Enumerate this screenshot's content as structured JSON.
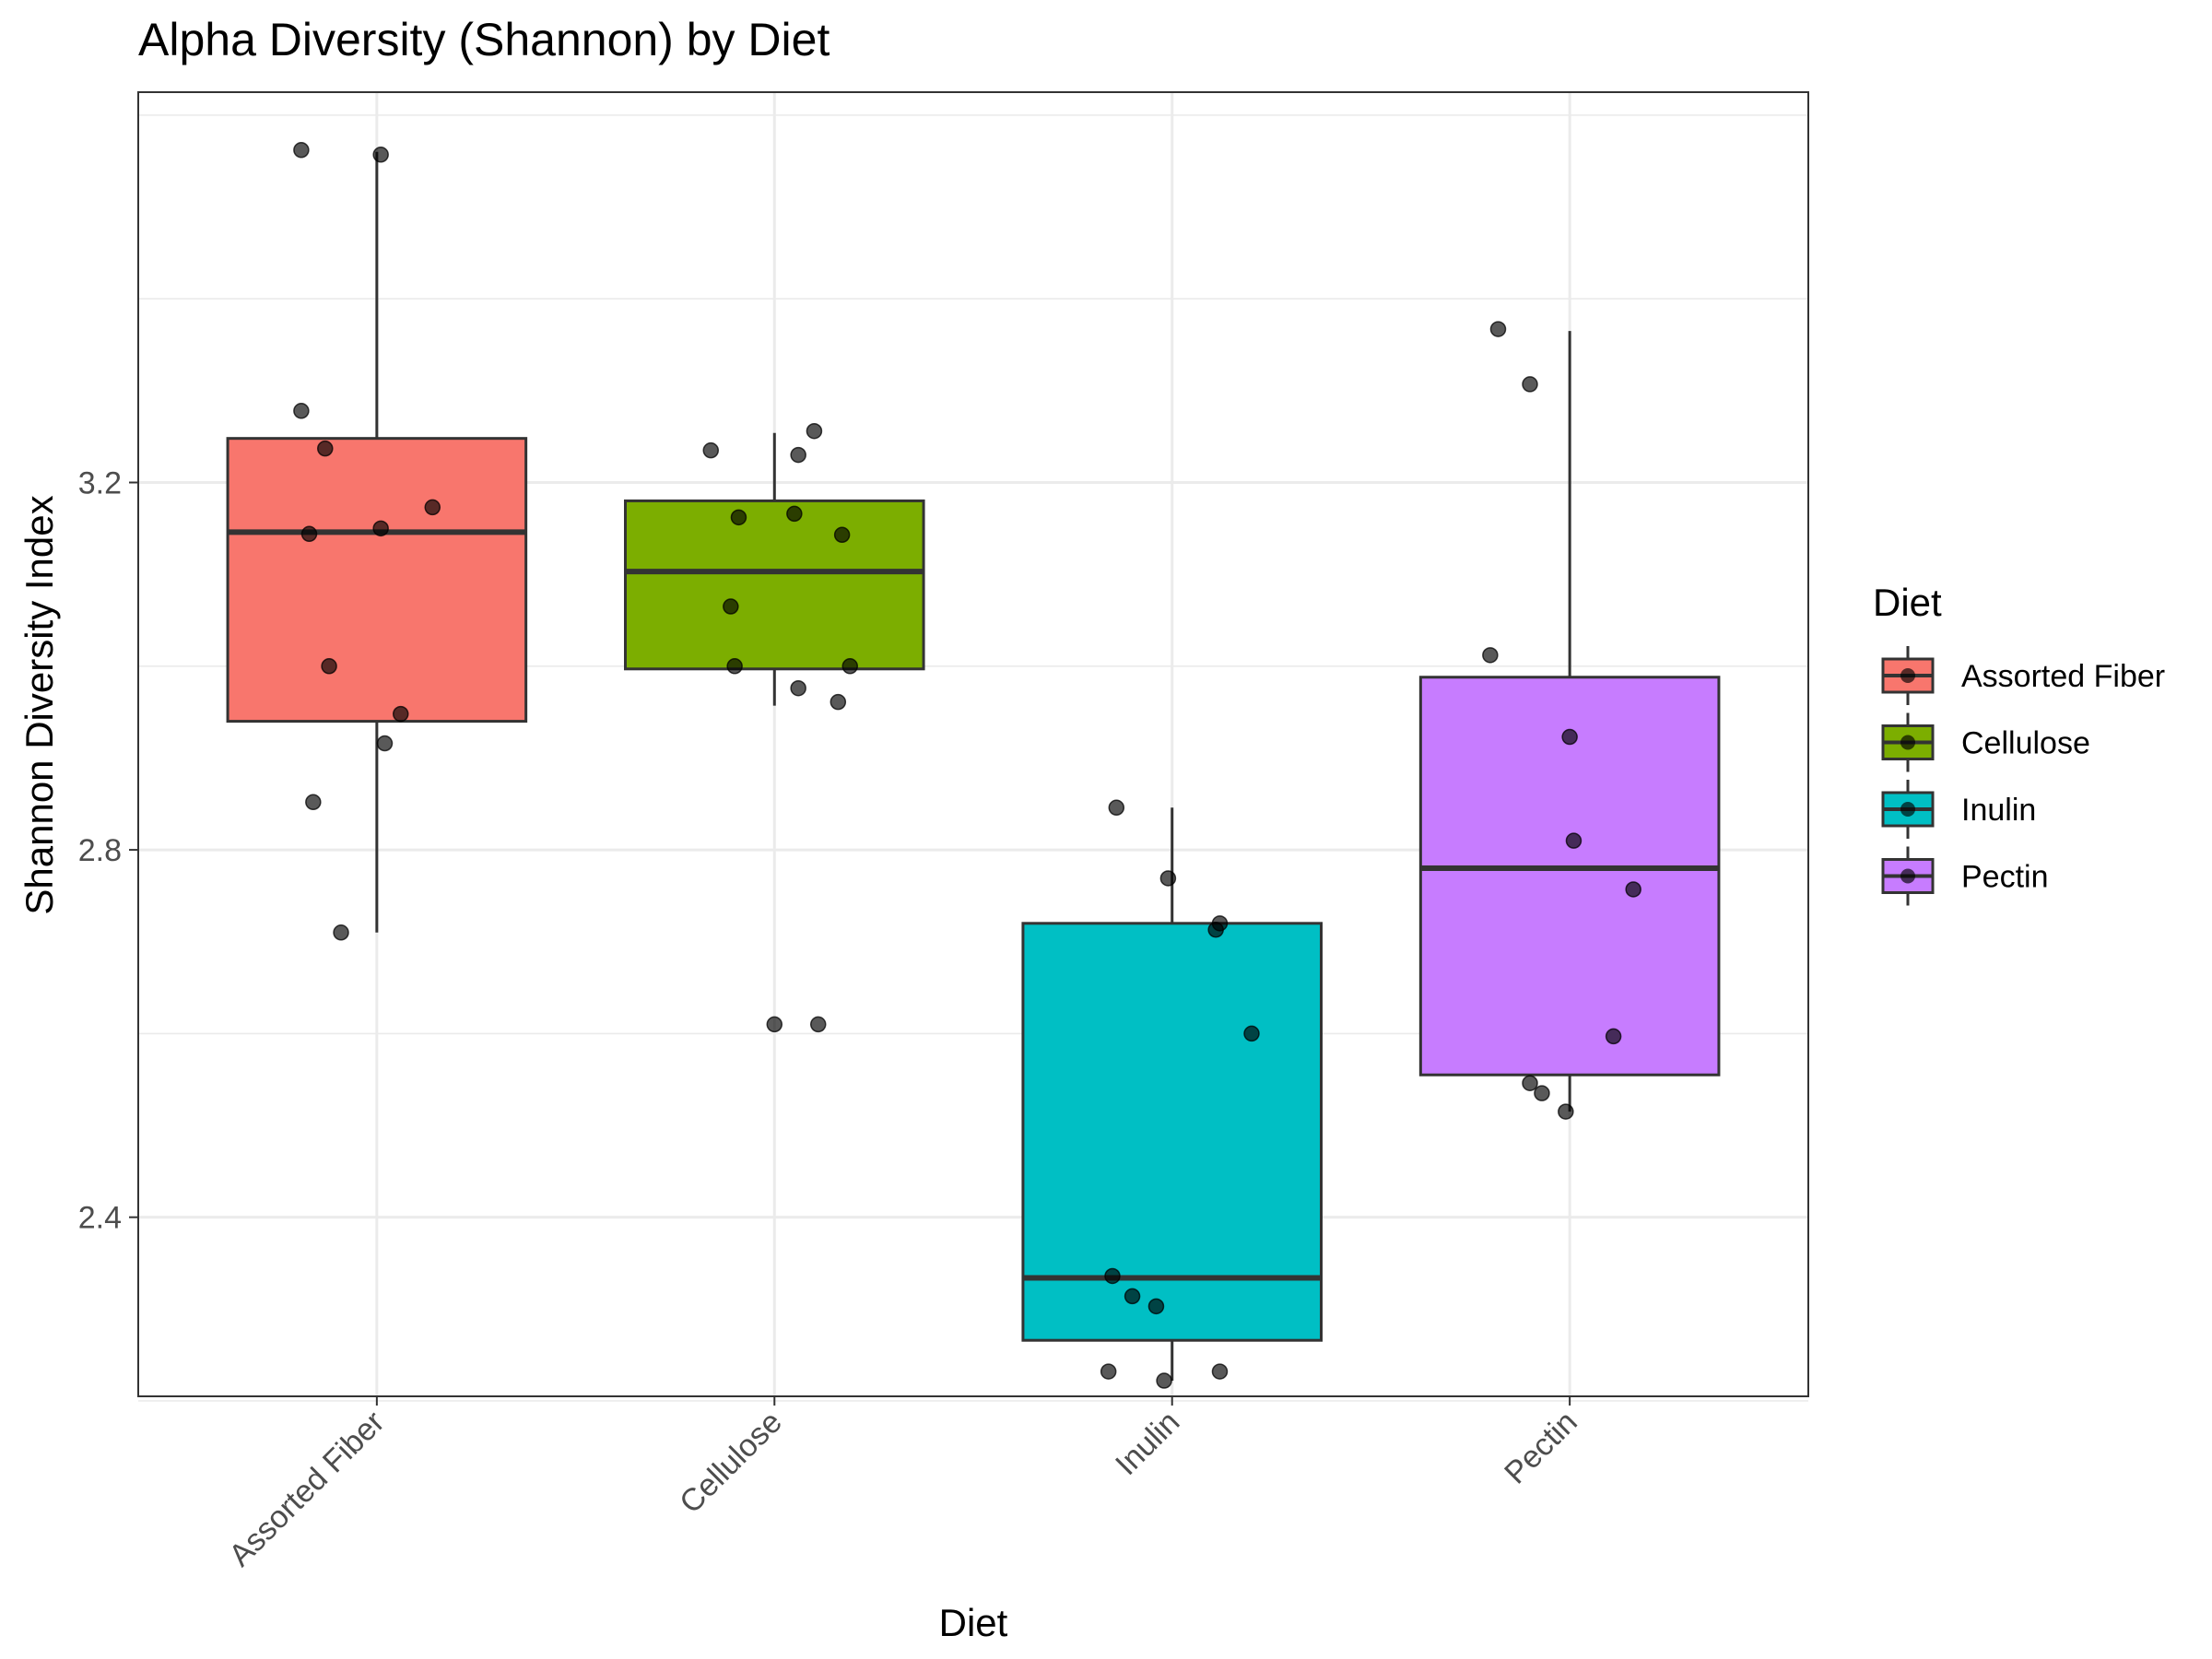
{
  "chart_data": {
    "type": "boxplot",
    "title": "Alpha Diversity (Shannon) by Diet",
    "xlabel": "Diet",
    "ylabel": "Shannon Diversity Index",
    "ylim": [
      2.205,
      3.625
    ],
    "yticks": [
      2.4,
      2.8,
      3.2
    ],
    "ytick_labels": [
      "2.4",
      "2.8",
      "3.2"
    ],
    "grid": true,
    "legend": {
      "title": "Diet",
      "position": "right"
    },
    "categories": [
      "Assorted Fiber",
      "Cellulose",
      "Inulin",
      "Pectin"
    ],
    "colors": [
      "#F8766D",
      "#7CAE00",
      "#00BFC4",
      "#C77CFF"
    ],
    "boxes": [
      {
        "name": "Assorted Fiber",
        "whisker_low": 2.71,
        "q1": 2.94,
        "median": 3.146,
        "q3": 3.248,
        "whisker_high": 3.56
      },
      {
        "name": "Cellulose",
        "whisker_low": 2.957,
        "q1": 2.997,
        "median": 3.103,
        "q3": 3.18,
        "whisker_high": 3.254
      },
      {
        "name": "Inulin",
        "whisker_low": 2.222,
        "q1": 2.266,
        "median": 2.334,
        "q3": 2.72,
        "whisker_high": 2.846
      },
      {
        "name": "Pectin",
        "whisker_low": 2.515,
        "q1": 2.555,
        "median": 2.78,
        "q3": 2.988,
        "whisker_high": 3.365
      }
    ],
    "points": [
      {
        "group": "Assorted Fiber",
        "values": [
          3.562,
          3.557,
          3.278,
          3.237,
          3.173,
          3.15,
          3.144,
          3.0,
          2.948,
          2.916,
          2.852,
          2.71
        ],
        "jitter": [
          -0.19,
          0.01,
          -0.19,
          -0.13,
          0.14,
          0.01,
          -0.17,
          -0.12,
          0.06,
          0.02,
          -0.16,
          -0.09
        ]
      },
      {
        "group": "Cellulose",
        "values": [
          3.256,
          3.235,
          3.23,
          3.166,
          3.162,
          3.143,
          3.065,
          3.0,
          3.0,
          2.976,
          2.961,
          2.61,
          2.61
        ],
        "jitter": [
          0.1,
          -0.16,
          0.06,
          0.05,
          -0.09,
          0.17,
          -0.11,
          0.19,
          -0.1,
          0.06,
          0.16,
          0.0,
          0.11
        ]
      },
      {
        "group": "Inulin",
        "values": [
          2.846,
          2.769,
          2.72,
          2.713,
          2.6,
          2.336,
          2.314,
          2.303,
          2.232,
          2.232,
          2.222
        ],
        "jitter": [
          -0.14,
          -0.01,
          0.12,
          0.11,
          0.2,
          -0.15,
          -0.1,
          -0.04,
          -0.16,
          0.12,
          -0.02
        ]
      },
      {
        "group": "Pectin",
        "values": [
          3.367,
          3.307,
          3.012,
          2.923,
          2.81,
          2.757,
          2.597,
          2.546,
          2.535,
          2.515
        ],
        "jitter": [
          -0.18,
          -0.1,
          -0.2,
          0.0,
          0.01,
          0.16,
          0.11,
          -0.1,
          -0.07,
          -0.01
        ]
      }
    ]
  }
}
